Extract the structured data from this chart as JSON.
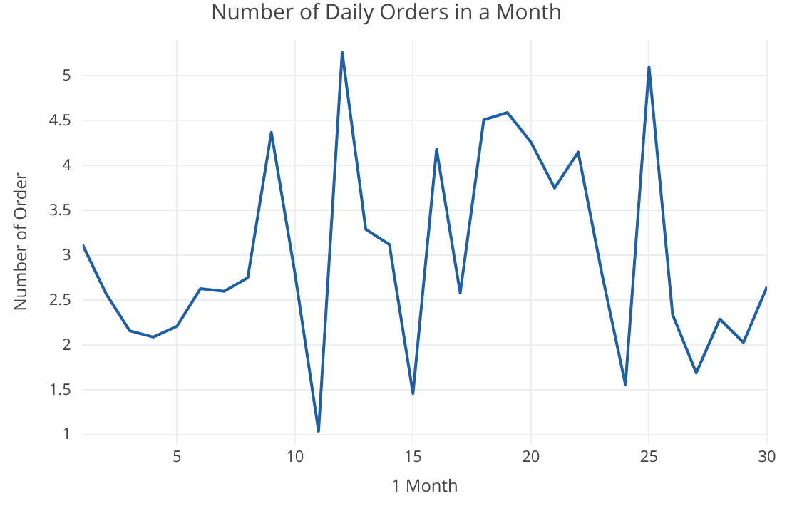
{
  "chart_data": {
    "type": "line",
    "title": "Number of Daily Orders in a Month",
    "xlabel": "1 Month",
    "ylabel": "Number of Order",
    "x": [
      1,
      2,
      3,
      4,
      5,
      6,
      7,
      8,
      9,
      10,
      11,
      12,
      13,
      14,
      15,
      16,
      17,
      18,
      19,
      20,
      21,
      22,
      23,
      24,
      25,
      26,
      27,
      28,
      29,
      30
    ],
    "series": [
      {
        "color": "#1f5fa5",
        "values": [
          3.12,
          2.57,
          2.16,
          2.09,
          2.21,
          2.63,
          2.6,
          2.75,
          4.37,
          2.8,
          1.04,
          5.26,
          3.29,
          3.12,
          1.46,
          4.18,
          2.58,
          4.51,
          4.59,
          4.26,
          3.75,
          4.15,
          2.8,
          1.56,
          5.1,
          2.34,
          1.69,
          2.29,
          2.03,
          2.65
        ]
      }
    ],
    "xlim": [
      1,
      30
    ],
    "xticks": [
      5,
      10,
      15,
      20,
      25,
      30
    ],
    "ylim": [
      0.9,
      5.4
    ],
    "yticks": [
      1,
      1.5,
      2,
      2.5,
      3,
      3.5,
      4,
      4.5,
      5
    ],
    "grid": true,
    "marker": "none",
    "line_style": "solid"
  }
}
